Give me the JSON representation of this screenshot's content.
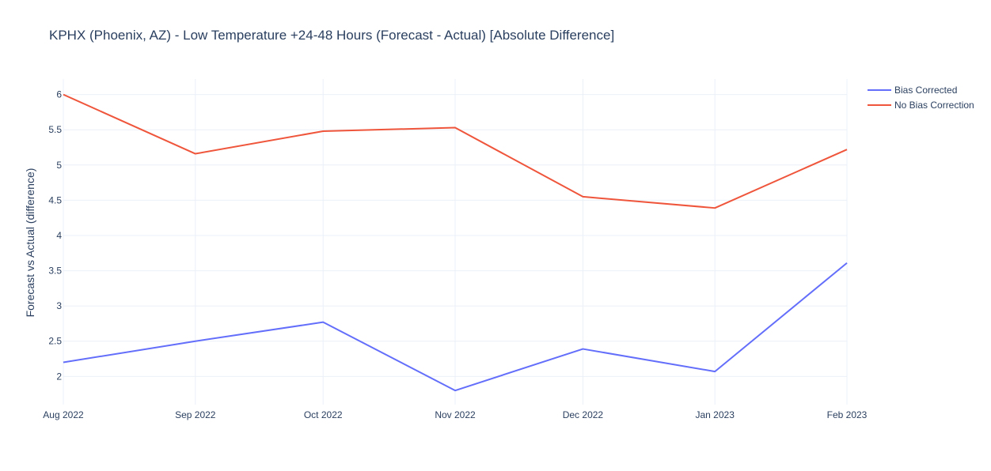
{
  "chart_data": {
    "type": "line",
    "title": "KPHX (Phoenix, AZ) - Low Temperature +24-48 Hours (Forecast - Actual) [Absolute Difference]",
    "xlabel": "",
    "ylabel": "Forecast vs Actual (difference)",
    "categories": [
      "Aug 2022",
      "Sep 2022",
      "Oct 2022",
      "Nov 2022",
      "Dec 2022",
      "Jan 2023",
      "Feb 2023"
    ],
    "x_dates": [
      "2022-08-01",
      "2022-09-01",
      "2022-10-01",
      "2022-11-01",
      "2022-12-01",
      "2023-01-01",
      "2023-02-01"
    ],
    "y_ticks": [
      2,
      2.5,
      3,
      3.5,
      4,
      4.5,
      5,
      5.5,
      6
    ],
    "ylim": [
      1.6,
      6.22
    ],
    "grid": true,
    "legend_position": "top-right",
    "series": [
      {
        "name": "Bias Corrected",
        "color": "#636efa",
        "values": [
          2.2,
          2.5,
          2.77,
          1.8,
          2.39,
          2.07,
          3.61
        ]
      },
      {
        "name": "No Bias Correction",
        "color": "#ef553b",
        "values": [
          6.0,
          5.16,
          5.48,
          5.53,
          4.55,
          4.39,
          5.22
        ]
      }
    ]
  }
}
